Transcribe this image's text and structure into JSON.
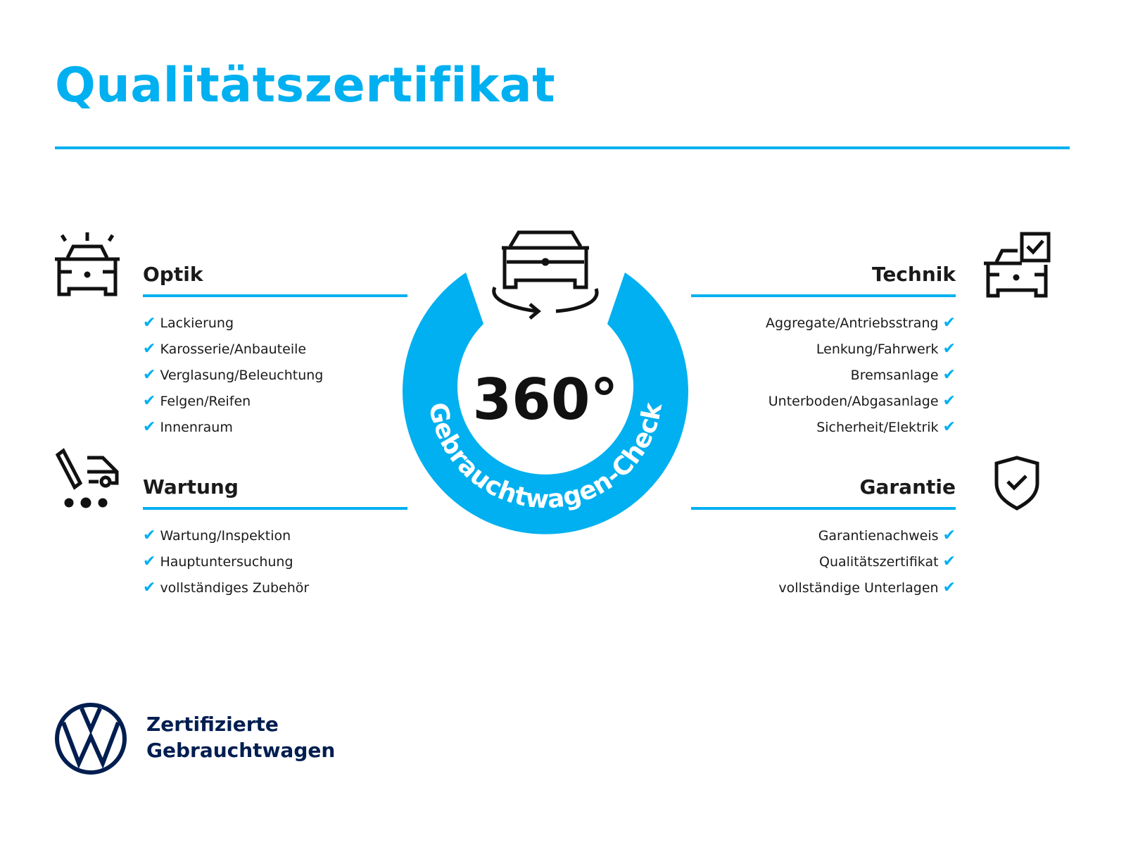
{
  "title": "Qualitätszertifikat",
  "center": {
    "big": "360°",
    "ring_text": "Gebrauchtwagen-Check"
  },
  "sections": {
    "optik": {
      "heading": "Optik",
      "items": [
        "Lackierung",
        "Karosserie/Anbauteile",
        "Verglasung/Beleuchtung",
        "Felgen/Reifen",
        "Innenraum"
      ]
    },
    "wartung": {
      "heading": "Wartung",
      "items": [
        "Wartung/Inspektion",
        "Hauptuntersuchung",
        "vollständiges Zubehör"
      ]
    },
    "technik": {
      "heading": "Technik",
      "items": [
        "Aggregate/Antriebsstrang",
        "Lenkung/Fahrwerk",
        "Bremsanlage",
        "Unterboden/Abgasanlage",
        "Sicherheit/Elektrik"
      ]
    },
    "garantie": {
      "heading": "Garantie",
      "items": [
        "Garantienachweis",
        "Qualitätszertifikat",
        "vollständige Unterlagen"
      ]
    }
  },
  "check_mark": "✔",
  "logo": {
    "line1": "Zertifizierte",
    "line2": "Gebrauchtwagen"
  },
  "colors": {
    "accent": "#00b0f0",
    "brand_navy": "#001e50",
    "text": "#1a1a1a"
  }
}
